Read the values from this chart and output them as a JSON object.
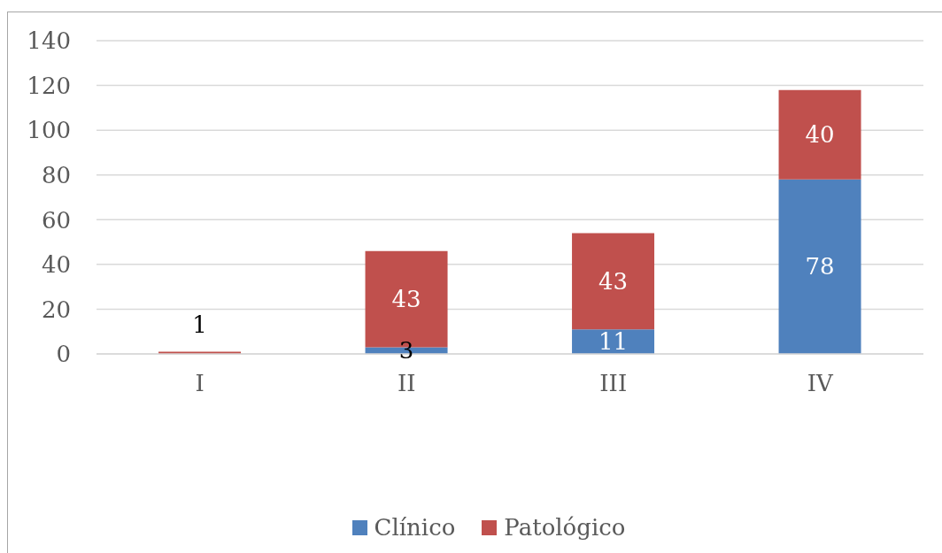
{
  "chart_data": {
    "type": "bar",
    "stacked": true,
    "categories": [
      "I",
      "II",
      "III",
      "IV"
    ],
    "series": [
      {
        "name": "Clínico",
        "color": "#4f81bd",
        "values": [
          null,
          3,
          11,
          78
        ]
      },
      {
        "name": "Patológico",
        "color": "#c0504d",
        "values": [
          1,
          43,
          43,
          40
        ]
      }
    ],
    "ylim": [
      0,
      140
    ],
    "yticks": [
      0,
      20,
      40,
      60,
      80,
      100,
      120,
      140
    ],
    "grid": "y",
    "legend": "bottom",
    "data_labels": true
  }
}
